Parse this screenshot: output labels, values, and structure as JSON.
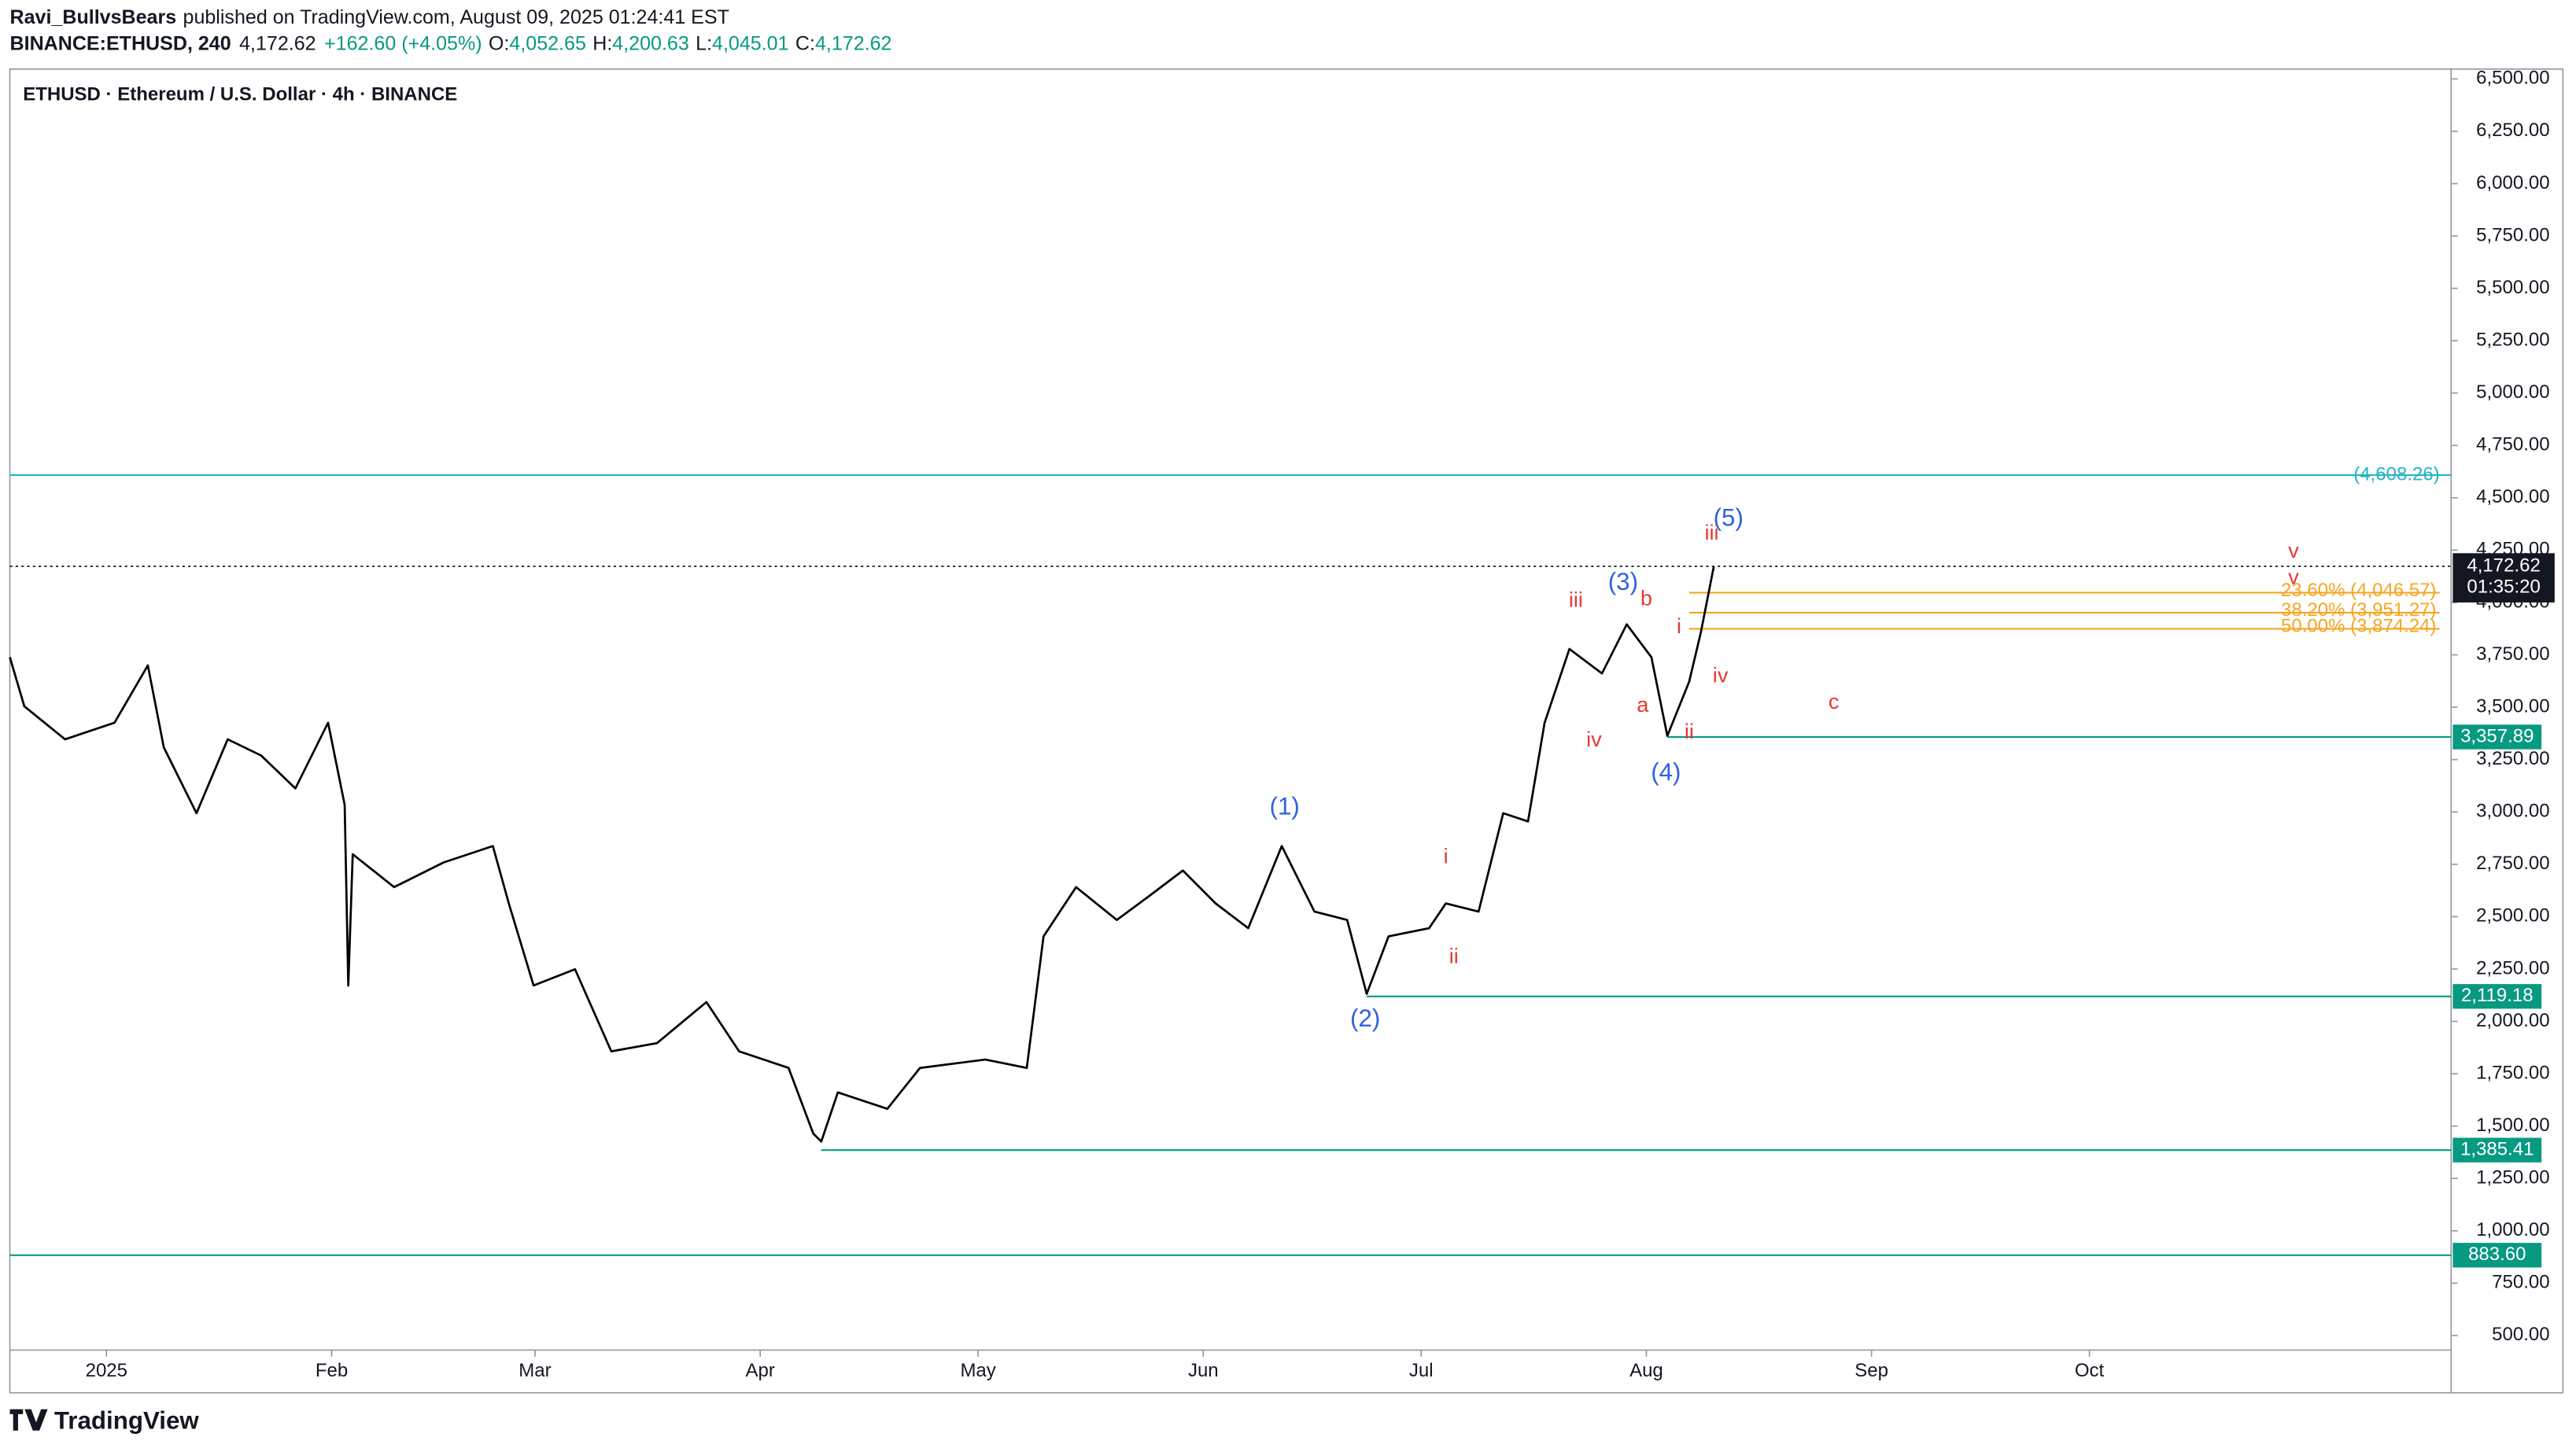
{
  "header": {
    "author": "Ravi_BullvsBears",
    "published": "published on TradingView.com, August 09, 2025 01:24:41 EST",
    "symbol": "BINANCE:ETHUSD, 240",
    "last": "4,172.62",
    "change": "+162.60 (+4.05%)",
    "ohlc": [
      {
        "label": "O:",
        "value": "4,052.65"
      },
      {
        "label": "H:",
        "value": "4,200.63"
      },
      {
        "label": "L:",
        "value": "4,045.01"
      },
      {
        "label": "C:",
        "value": "4,172.62"
      }
    ]
  },
  "footer": {
    "brand": "TradingView"
  },
  "chart_data": {
    "type": "line",
    "title": "ETHUSD · Ethereum / U.S. Dollar · 4h · BINANCE",
    "x": [
      -13.3,
      -11.3,
      -5.7,
      1.1,
      5.7,
      7.9,
      12.4,
      16.7,
      21.3,
      26,
      30.5,
      32.8,
      33.3,
      33.9,
      39.6,
      46.4,
      53.2,
      55.4,
      58.8,
      64.5,
      69.5,
      75.8,
      82.6,
      87.1,
      93.9,
      97.3,
      98.4,
      100.7,
      107.5,
      112,
      121,
      126.7,
      129,
      133.5,
      139.1,
      143.7,
      148.2,
      152.7,
      157.2,
      161.8,
      166.3,
      170.8,
      173.5,
      176.5,
      182.1,
      184.4,
      188.9,
      192.3,
      195.7,
      198,
      201.4,
      205.9,
      209.3,
      212.7,
      214.9,
      217.9,
      219.5,
      221.3
    ],
    "series": [
      {
        "name": "ETHUSD",
        "color": "#000000",
        "values": [
          3739,
          3504,
          3347,
          3426,
          3700,
          3308,
          2994,
          3347,
          3269,
          3112,
          3426,
          3034,
          2171,
          2798,
          2641,
          2759,
          2837,
          2563,
          2171,
          2249,
          1857,
          1896,
          2092,
          1857,
          1778,
          1465,
          1426,
          1661,
          1582,
          1778,
          1818,
          1778,
          2406,
          2641,
          2484,
          2602,
          2720,
          2563,
          2445,
          2837,
          2524,
          2484,
          2131,
          2406,
          2445,
          2563,
          2524,
          2994,
          2955,
          3426,
          3778,
          3661,
          3896,
          3739,
          3363,
          3622,
          3857,
          4172.62
        ]
      }
    ],
    "xlim": [
      -13.3,
      322.8
    ],
    "xticks": [
      {
        "value": 0,
        "label": "2025"
      },
      {
        "value": 31,
        "label": "Feb"
      },
      {
        "value": 59,
        "label": "Mar"
      },
      {
        "value": 90,
        "label": "Apr"
      },
      {
        "value": 120,
        "label": "May"
      },
      {
        "value": 151,
        "label": "Jun"
      },
      {
        "value": 181,
        "label": "Jul"
      },
      {
        "value": 212,
        "label": "Aug"
      },
      {
        "value": 243,
        "label": "Sep"
      },
      {
        "value": 273,
        "label": "Oct"
      }
    ],
    "ylim": [
      430.4,
      6547
    ],
    "yticks": [
      {
        "value": 500,
        "label": "500.00"
      },
      {
        "value": 750,
        "label": "750.00"
      },
      {
        "value": 1000,
        "label": "1,000.00"
      },
      {
        "value": 1250,
        "label": "1,250.00"
      },
      {
        "value": 1500,
        "label": "1,500.00"
      },
      {
        "value": 1750,
        "label": "1,750.00"
      },
      {
        "value": 2000,
        "label": "2,000.00"
      },
      {
        "value": 2250,
        "label": "2,250.00"
      },
      {
        "value": 2500,
        "label": "2,500.00"
      },
      {
        "value": 2750,
        "label": "2,750.00"
      },
      {
        "value": 3000,
        "label": "3,000.00"
      },
      {
        "value": 3250,
        "label": "3,250.00"
      },
      {
        "value": 3500,
        "label": "3,500.00"
      },
      {
        "value": 3750,
        "label": "3,750.00"
      },
      {
        "value": 4000,
        "label": "4,000.00"
      },
      {
        "value": 4250,
        "label": "4,250.00"
      },
      {
        "value": 4500,
        "label": "4,500.00"
      },
      {
        "value": 4750,
        "label": "4,750.00"
      },
      {
        "value": 5000,
        "label": "5,000.00"
      },
      {
        "value": 5250,
        "label": "5,250.00"
      },
      {
        "value": 5500,
        "label": "5,500.00"
      },
      {
        "value": 5750,
        "label": "5,750.00"
      },
      {
        "value": 6000,
        "label": "6,000.00"
      },
      {
        "value": 6250,
        "label": "6,250.00"
      },
      {
        "value": 6500,
        "label": "6,500.00"
      }
    ],
    "current": {
      "value": 4172.62,
      "label": "4,172.62",
      "countdown": "01:35:20"
    },
    "levels": [
      {
        "value": 4608.26,
        "label": "(4,608.26)",
        "color": "#22b5c2",
        "style": "text"
      },
      {
        "value": 3357.89,
        "label": "3,357.89",
        "color": "#089981",
        "start": 214.9,
        "style": "box"
      },
      {
        "value": 2119.18,
        "label": "2,119.18",
        "color": "#089981",
        "start": 173.5,
        "style": "box"
      },
      {
        "value": 1385.41,
        "label": "1,385.41",
        "color": "#089981",
        "start": 98.4,
        "style": "box"
      },
      {
        "value": 883.6,
        "label": "883.60",
        "color": "#089981",
        "style": "box"
      }
    ],
    "fib": [
      {
        "value": 4046.57,
        "label": "23.60% (4,046.57)"
      },
      {
        "value": 3951.27,
        "label": "38.20% (3,951.27)"
      },
      {
        "value": 3874.24,
        "label": "50.00% (3,874.24)"
      }
    ],
    "fib_start": 217.9,
    "fib_color": "#f5a623",
    "annotations": [
      {
        "text": "(1)",
        "x": 162.2,
        "y": 3018,
        "color": "#2f62e0"
      },
      {
        "text": "(2)",
        "x": 173.3,
        "y": 2006,
        "color": "#2f62e0"
      },
      {
        "text": "(3)",
        "x": 208.8,
        "y": 4092,
        "color": "#2f62e0"
      },
      {
        "text": "(4)",
        "x": 214.7,
        "y": 3182,
        "color": "#2f62e0"
      },
      {
        "text": "(5)",
        "x": 223.3,
        "y": 4398,
        "color": "#2f62e0"
      },
      {
        "text": "i",
        "x": 184.4,
        "y": 2782,
        "color": "#e53935"
      },
      {
        "text": "ii",
        "x": 185.5,
        "y": 2304,
        "color": "#e53935"
      },
      {
        "text": "iii",
        "x": 202.3,
        "y": 4006,
        "color": "#e53935"
      },
      {
        "text": "iv",
        "x": 204.8,
        "y": 3339,
        "color": "#e53935"
      },
      {
        "text": "b",
        "x": 212,
        "y": 4014,
        "color": "#e53935"
      },
      {
        "text": "a",
        "x": 211.5,
        "y": 3504,
        "color": "#e53935"
      },
      {
        "text": "i",
        "x": 216.5,
        "y": 3880,
        "color": "#e53935"
      },
      {
        "text": "ii",
        "x": 217.9,
        "y": 3378,
        "color": "#e53935"
      },
      {
        "text": "iv",
        "x": 222.2,
        "y": 3645,
        "color": "#e53935"
      },
      {
        "text": "iii",
        "x": 221,
        "y": 4327,
        "color": "#e53935"
      },
      {
        "text": "v",
        "x": 301.1,
        "y": 4241,
        "color": "#e53935"
      },
      {
        "text": "v",
        "x": 301.1,
        "y": 4116,
        "color": "#e53935"
      },
      {
        "text": "c",
        "x": 237.8,
        "y": 3519,
        "color": "#e53935"
      }
    ]
  }
}
